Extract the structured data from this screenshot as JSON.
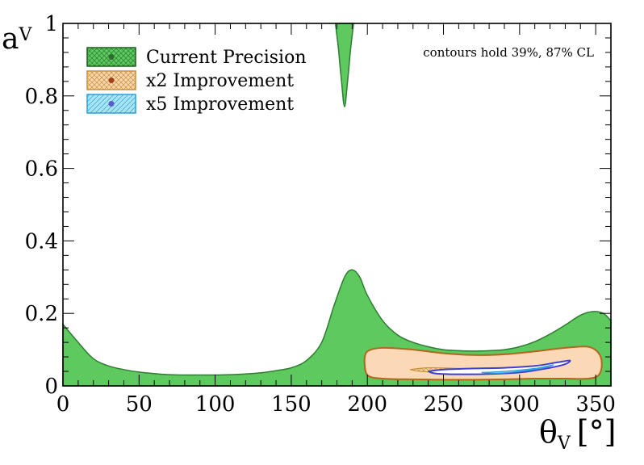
{
  "chart_data": {
    "type": "contour",
    "title": "",
    "xlabel": "θ",
    "xlabel_sub": "V",
    "xlabel_unit": "[°]",
    "ylabel": "a",
    "ylabel_sub": "V",
    "xlim": [
      0,
      360
    ],
    "ylim": [
      0,
      1
    ],
    "x_ticks": [
      0,
      50,
      100,
      150,
      200,
      250,
      300,
      350
    ],
    "x_tick_labels": [
      "0",
      "50",
      "100",
      "150",
      "200",
      "250",
      "300",
      "350"
    ],
    "y_ticks": [
      0,
      0.2,
      0.4,
      0.6,
      0.8,
      1
    ],
    "y_tick_labels": [
      "0",
      "0.2",
      "0.4",
      "0.6",
      "0.8",
      "1"
    ],
    "annotation": "contours hold 39%, 87% CL",
    "legend": [
      {
        "label": "Current Precision",
        "color": "#5ec95e",
        "edge": "#2e7d32",
        "marker": "#2e6b2e"
      },
      {
        "label": "x2 Improvement",
        "color": "#f9d6b0",
        "edge": "#c8903a",
        "marker": "#a0401a"
      },
      {
        "label": "x5 Improvement",
        "color": "#a8e4f4",
        "edge": "#2aa0d8",
        "marker": "#5a5ad0"
      }
    ],
    "series": [
      {
        "name": "Current Precision 87% CL (lower band upper boundary)",
        "x": [
          0,
          10,
          20,
          30,
          40,
          50,
          60,
          70,
          80,
          90,
          100,
          110,
          120,
          130,
          140,
          150,
          160,
          170,
          178,
          185,
          190,
          195,
          200,
          210,
          220,
          230,
          240,
          250,
          260,
          270,
          280,
          290,
          300,
          310,
          320,
          330,
          340,
          348,
          355,
          360
        ],
        "y": [
          0.17,
          0.12,
          0.075,
          0.055,
          0.045,
          0.038,
          0.034,
          0.031,
          0.03,
          0.03,
          0.03,
          0.031,
          0.033,
          0.036,
          0.042,
          0.05,
          0.07,
          0.12,
          0.22,
          0.3,
          0.32,
          0.3,
          0.25,
          0.18,
          0.14,
          0.12,
          0.108,
          0.1,
          0.097,
          0.096,
          0.097,
          0.1,
          0.108,
          0.122,
          0.143,
          0.168,
          0.195,
          0.205,
          0.2,
          0.18
        ]
      },
      {
        "name": "Current Precision 87% CL (upper spike)",
        "x": [
          179,
          181,
          183,
          185,
          187,
          189,
          191
        ],
        "y": [
          1.0,
          0.93,
          0.84,
          0.77,
          0.84,
          0.93,
          1.0
        ]
      },
      {
        "name": "x2 Improvement 87% CL",
        "x": [
          198,
          200,
          210,
          230,
          250,
          270,
          290,
          310,
          330,
          345,
          352,
          354,
          352,
          345,
          330,
          310,
          290,
          270,
          250,
          230,
          210,
          200,
          198
        ],
        "y": [
          0.07,
          0.095,
          0.105,
          0.1,
          0.09,
          0.085,
          0.087,
          0.095,
          0.105,
          0.108,
          0.09,
          0.06,
          0.03,
          0.02,
          0.02,
          0.02,
          0.018,
          0.017,
          0.017,
          0.018,
          0.02,
          0.03,
          0.07
        ]
      },
      {
        "name": "x2 Improvement 39% CL",
        "x": [
          228,
          240,
          260,
          275,
          268,
          250,
          235,
          228
        ],
        "y": [
          0.045,
          0.05,
          0.048,
          0.045,
          0.04,
          0.038,
          0.04,
          0.045
        ]
      },
      {
        "name": "x5 Improvement 87% CL",
        "x": [
          240,
          250,
          270,
          290,
          310,
          325,
          333,
          330,
          320,
          300,
          280,
          260,
          245,
          240
        ],
        "y": [
          0.04,
          0.045,
          0.048,
          0.05,
          0.055,
          0.065,
          0.07,
          0.06,
          0.05,
          0.037,
          0.033,
          0.032,
          0.034,
          0.04
        ]
      },
      {
        "name": "x5 Improvement 39% CL",
        "x": [
          275,
          290,
          310,
          322,
          316,
          300,
          285,
          275
        ],
        "y": [
          0.037,
          0.04,
          0.048,
          0.058,
          0.05,
          0.04,
          0.035,
          0.037
        ]
      }
    ]
  }
}
